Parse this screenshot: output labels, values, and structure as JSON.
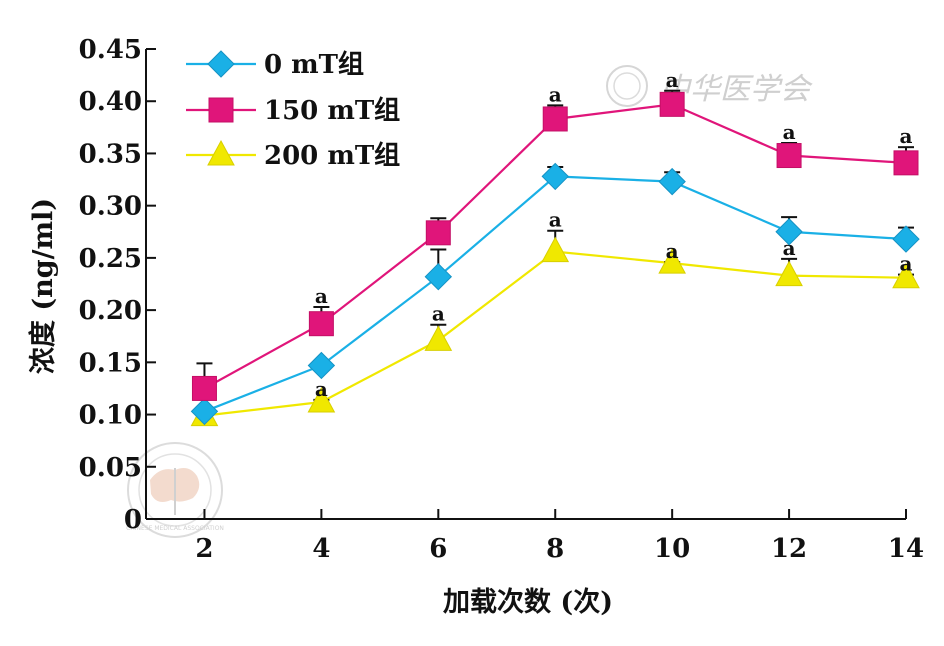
{
  "chart_data": {
    "type": "line",
    "title": "",
    "xlabel": "加载次数 (次)",
    "ylabel": "浓度 (ng/ml)",
    "x": [
      2,
      4,
      6,
      8,
      10,
      12,
      14
    ],
    "x_ticks": [
      "2",
      "4",
      "6",
      "8",
      "10",
      "12",
      "14"
    ],
    "ylim": [
      0,
      0.45
    ],
    "y_ticks": [
      "0",
      "0.05",
      "0.10",
      "0.15",
      "0.20",
      "0.25",
      "0.30",
      "0.35",
      "0.40",
      "0.45"
    ],
    "y_tick_values": [
      0,
      0.05,
      0.1,
      0.15,
      0.2,
      0.25,
      0.3,
      0.35,
      0.4,
      0.45
    ],
    "grid": false,
    "legend_position": "top-left",
    "series": [
      {
        "name": "0 mT组",
        "color": "#1ab0e6",
        "marker": "diamond",
        "values": [
          0.103,
          0.147,
          0.232,
          0.328,
          0.323,
          0.275,
          0.268
        ],
        "error_upper": [
          0.002,
          0.002,
          0.026,
          0.009,
          0.009,
          0.014,
          0.011
        ],
        "significance": [
          "",
          "",
          "",
          "",
          "",
          "",
          ""
        ]
      },
      {
        "name": "150 mT组",
        "color": "#e0157a",
        "marker": "square",
        "values": [
          0.125,
          0.187,
          0.274,
          0.383,
          0.397,
          0.348,
          0.341
        ],
        "error_upper": [
          0.024,
          0.016,
          0.014,
          0.013,
          0.013,
          0.012,
          0.015
        ],
        "significance": [
          "",
          "a",
          "",
          "a",
          "a",
          "a",
          "a"
        ]
      },
      {
        "name": "200 mT组",
        "color": "#f0e800",
        "marker": "triangle",
        "values": [
          0.099,
          0.112,
          0.171,
          0.256,
          0.245,
          0.233,
          0.231
        ],
        "error_upper": [
          0.002,
          0.002,
          0.015,
          0.02,
          0.001,
          0.016,
          0.003
        ],
        "significance": [
          "",
          "a",
          "a",
          "a",
          "a",
          "a",
          "a"
        ]
      }
    ]
  },
  "watermarks": {
    "top_right_text": "中华医学会",
    "bottom_left_seal": "CHINESE MEDICAL ASSOCIATION"
  }
}
